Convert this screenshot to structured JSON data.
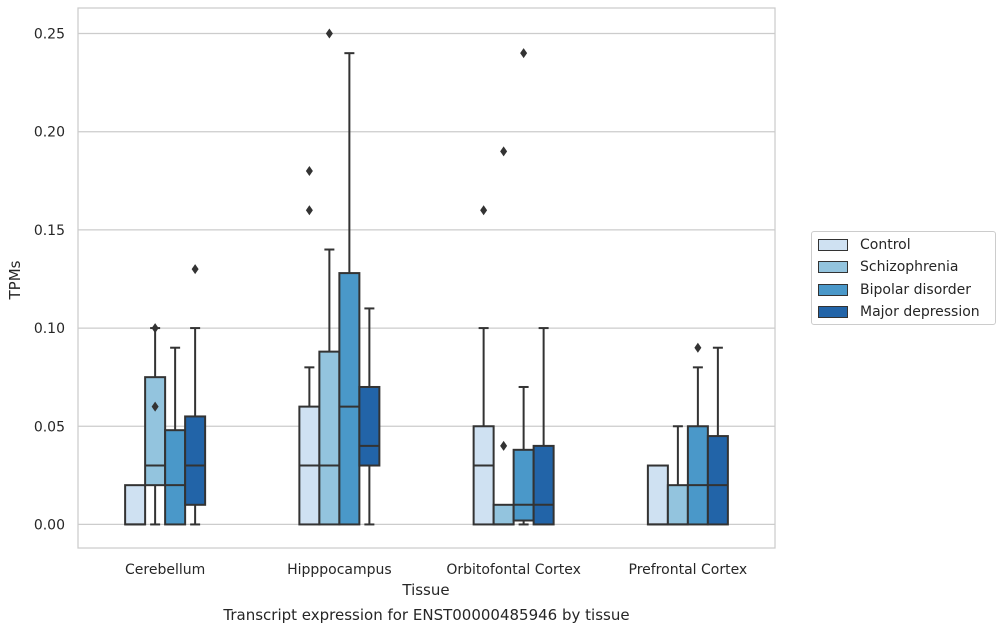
{
  "chart_data": {
    "type": "box",
    "title": "",
    "xlabel": "Tissue",
    "ylabel": "TPMs",
    "caption": "Transcript expression for ENST00000485946 by tissue",
    "ylim": [
      -0.012,
      0.263
    ],
    "yticks": [
      0.0,
      0.05,
      0.1,
      0.15,
      0.2,
      0.25
    ],
    "ytick_labels": [
      "0.00",
      "0.05",
      "0.10",
      "0.15",
      "0.20",
      "0.25"
    ],
    "grid": "horizontal",
    "legend_position": "right",
    "categories": [
      "Cerebellum",
      "Hipppocampus",
      "Orbitofontal Cortex",
      "Prefrontal Cortex"
    ],
    "series": [
      {
        "name": "Control",
        "color": "#cfe1f2",
        "boxes": [
          {
            "min": 0.0,
            "q1": 0.0,
            "median": 0.0,
            "q3": 0.02,
            "max": 0.02,
            "outliers": []
          },
          {
            "min": 0.0,
            "q1": 0.0,
            "median": 0.03,
            "q3": 0.06,
            "max": 0.08,
            "outliers": [
              0.16,
              0.18
            ]
          },
          {
            "min": 0.0,
            "q1": 0.0,
            "median": 0.03,
            "q3": 0.05,
            "max": 0.1,
            "outliers": [
              0.16
            ]
          },
          {
            "min": 0.0,
            "q1": 0.0,
            "median": 0.0,
            "q3": 0.03,
            "max": 0.03,
            "outliers": []
          }
        ]
      },
      {
        "name": "Schizophrenia",
        "color": "#93c4de",
        "boxes": [
          {
            "min": 0.0,
            "q1": 0.02,
            "median": 0.03,
            "q3": 0.075,
            "max": 0.1,
            "outliers": [
              0.06,
              0.1
            ]
          },
          {
            "min": 0.0,
            "q1": 0.0,
            "median": 0.03,
            "q3": 0.088,
            "max": 0.14,
            "outliers": [
              0.25
            ]
          },
          {
            "min": 0.0,
            "q1": 0.0,
            "median": 0.0,
            "q3": 0.01,
            "max": 0.01,
            "outliers": [
              0.04,
              0.19
            ]
          },
          {
            "min": 0.0,
            "q1": 0.0,
            "median": 0.0,
            "q3": 0.02,
            "max": 0.05,
            "outliers": []
          }
        ]
      },
      {
        "name": "Bipolar disorder",
        "color": "#4a98c9",
        "boxes": [
          {
            "min": 0.0,
            "q1": 0.0,
            "median": 0.02,
            "q3": 0.048,
            "max": 0.09,
            "outliers": []
          },
          {
            "min": 0.0,
            "q1": 0.0,
            "median": 0.06,
            "q3": 0.128,
            "max": 0.24,
            "outliers": []
          },
          {
            "min": 0.0,
            "q1": 0.002,
            "median": 0.01,
            "q3": 0.038,
            "max": 0.07,
            "outliers": [
              0.24
            ]
          },
          {
            "min": 0.0,
            "q1": 0.0,
            "median": 0.02,
            "q3": 0.05,
            "max": 0.08,
            "outliers": [
              0.09
            ]
          }
        ]
      },
      {
        "name": "Major depression",
        "color": "#2264a8",
        "boxes": [
          {
            "min": 0.0,
            "q1": 0.01,
            "median": 0.03,
            "q3": 0.055,
            "max": 0.1,
            "outliers": [
              0.13
            ]
          },
          {
            "min": 0.0,
            "q1": 0.03,
            "median": 0.04,
            "q3": 0.07,
            "max": 0.11,
            "outliers": []
          },
          {
            "min": 0.0,
            "q1": 0.0,
            "median": 0.01,
            "q3": 0.04,
            "max": 0.1,
            "outliers": []
          },
          {
            "min": 0.0,
            "q1": 0.0,
            "median": 0.02,
            "q3": 0.045,
            "max": 0.09,
            "outliers": []
          }
        ]
      }
    ]
  }
}
